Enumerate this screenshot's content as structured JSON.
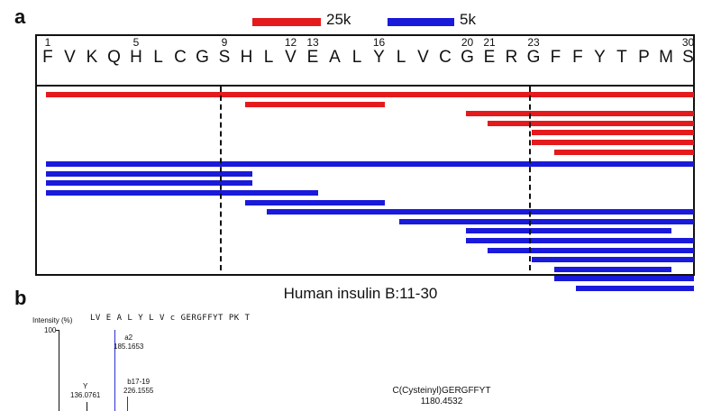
{
  "panel_a": {
    "letter": "a",
    "legend": [
      {
        "label": "25k",
        "color": "#e41a1c"
      },
      {
        "label": "5k",
        "color": "#1a1adb"
      }
    ],
    "sequence": [
      "F",
      "V",
      "K",
      "Q",
      "H",
      "L",
      "C",
      "G",
      "S",
      "H",
      "L",
      "V",
      "E",
      "A",
      "L",
      "Y",
      "L",
      "V",
      "C",
      "G",
      "E",
      "R",
      "G",
      "F",
      "F",
      "Y",
      "T",
      "P",
      "M",
      "S"
    ],
    "position_labels": [
      {
        "pos": 1,
        "text": "1"
      },
      {
        "pos": 5,
        "text": "5"
      },
      {
        "pos": 9,
        "text": "9"
      },
      {
        "pos": 12,
        "text": "12"
      },
      {
        "pos": 13,
        "text": "13"
      },
      {
        "pos": 16,
        "text": "16"
      },
      {
        "pos": 20,
        "text": "20"
      },
      {
        "pos": 21,
        "text": "21"
      },
      {
        "pos": 23,
        "text": "23"
      },
      {
        "pos": 30,
        "text": "30"
      }
    ],
    "dashed_after_residues": [
      9,
      23
    ],
    "chart_data": {
      "type": "bar",
      "title": "",
      "xlabel": "",
      "ylabel": "",
      "x_range": [
        1,
        30
      ],
      "series": [
        {
          "name": "25k",
          "color": "#e41a1c",
          "segments": [
            [
              1,
              30
            ],
            [
              10,
              16
            ],
            [
              20,
              30
            ],
            [
              21,
              30
            ],
            [
              23,
              30
            ],
            [
              23,
              30
            ],
            [
              24,
              30
            ]
          ]
        },
        {
          "name": "5k",
          "color": "#1a1adb",
          "segments": [
            [
              1,
              30
            ],
            [
              1,
              10
            ],
            [
              1,
              10
            ],
            [
              1,
              13
            ],
            [
              10,
              16
            ],
            [
              11,
              30
            ],
            [
              17,
              30
            ],
            [
              20,
              29
            ],
            [
              20,
              30
            ],
            [
              21,
              30
            ],
            [
              23,
              30
            ],
            [
              24,
              29
            ],
            [
              24,
              30
            ],
            [
              25,
              30
            ]
          ]
        }
      ]
    }
  },
  "panel_b": {
    "letter": "b",
    "title": "Human insulin B:11-30",
    "y_axis_label": "Intensity (%)",
    "y_top_tick": "100",
    "sequence_ladder": "LV E A L Y L V c GERGFFYT PK T",
    "peaks": [
      {
        "name": "a2",
        "mz": "185.1653"
      },
      {
        "name": "Y",
        "mz": "136.0761"
      },
      {
        "name": "b17-19",
        "mz": "226.1555"
      }
    ],
    "annotation": {
      "name": "C(Cysteinyl)GERGFFYT",
      "mz": "1180.4532"
    }
  }
}
